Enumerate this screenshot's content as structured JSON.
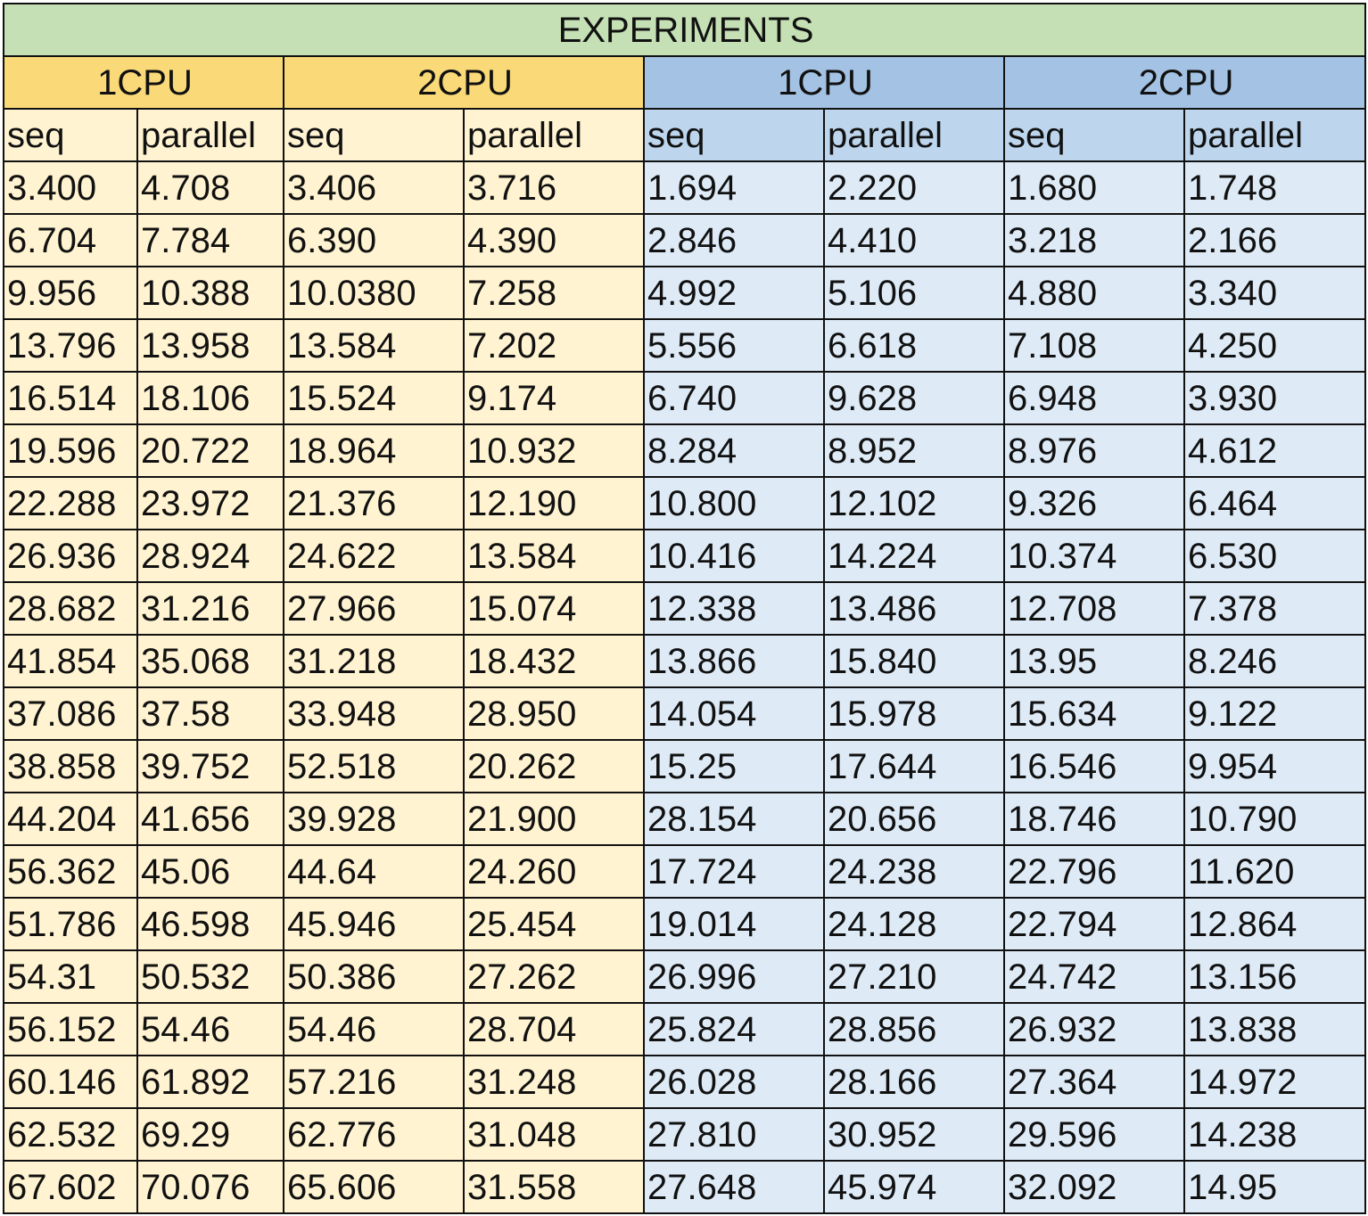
{
  "sheet": {
    "title": "EXPERIMENTS",
    "colors": {
      "title_bg": "#c5e0b4",
      "orange_header_bg": "#f9d978",
      "orange_body_bg": "#fff3d1",
      "blue_header_bg": "#a4c2e3",
      "blue_subheader_bg": "#bdd6ee",
      "blue_body_bg": "#deebf7"
    },
    "groups": [
      {
        "label": "1CPU",
        "theme": "orange"
      },
      {
        "label": "2CPU",
        "theme": "orange"
      },
      {
        "label": "1CPU",
        "theme": "blue"
      },
      {
        "label": "2CPU",
        "theme": "blue"
      }
    ],
    "columns": [
      "seq",
      "parallel",
      "seq",
      "parallel",
      "seq",
      "parallel",
      "seq",
      "parallel"
    ],
    "rows": [
      [
        "3.400",
        "4.708",
        "3.406",
        "3.716",
        "1.694",
        "2.220",
        "1.680",
        "1.748"
      ],
      [
        "6.704",
        "7.784",
        "6.390",
        "4.390",
        "2.846",
        "4.410",
        "3.218",
        "2.166"
      ],
      [
        "9.956",
        "10.388",
        "10.0380",
        "7.258",
        "4.992",
        "5.106",
        "4.880",
        "3.340"
      ],
      [
        "13.796",
        "13.958",
        "13.584",
        "7.202",
        "5.556",
        "6.618",
        "7.108",
        "4.250"
      ],
      [
        "16.514",
        "18.106",
        "15.524",
        "9.174",
        "6.740",
        "9.628",
        "6.948",
        "3.930"
      ],
      [
        "19.596",
        "20.722",
        "18.964",
        "10.932",
        "8.284",
        "8.952",
        "8.976",
        "4.612"
      ],
      [
        "22.288",
        "23.972",
        "21.376",
        "12.190",
        "10.800",
        "12.102",
        "9.326",
        "6.464"
      ],
      [
        "26.936",
        "28.924",
        "24.622",
        "13.584",
        "10.416",
        "14.224",
        "10.374",
        "6.530"
      ],
      [
        "28.682",
        "31.216",
        "27.966",
        "15.074",
        "12.338",
        "13.486",
        "12.708",
        "7.378"
      ],
      [
        "41.854",
        "35.068",
        "31.218",
        "18.432",
        "13.866",
        "15.840",
        "13.95",
        "8.246"
      ],
      [
        "37.086",
        "37.58",
        "33.948",
        "28.950",
        "14.054",
        "15.978",
        "15.634",
        "9.122"
      ],
      [
        "38.858",
        "39.752",
        "52.518",
        "20.262",
        "15.25",
        "17.644",
        "16.546",
        "9.954"
      ],
      [
        "44.204",
        "41.656",
        "39.928",
        "21.900",
        "28.154",
        "20.656",
        "18.746",
        "10.790"
      ],
      [
        "56.362",
        "45.06",
        "44.64",
        "24.260",
        "17.724",
        "24.238",
        "22.796",
        "11.620"
      ],
      [
        "51.786",
        "46.598",
        "45.946",
        "25.454",
        "19.014",
        "24.128",
        "22.794",
        "12.864"
      ],
      [
        "54.31",
        "50.532",
        "50.386",
        "27.262",
        "26.996",
        "27.210",
        "24.742",
        "13.156"
      ],
      [
        "56.152",
        "54.46",
        "54.46",
        "28.704",
        "25.824",
        "28.856",
        "26.932",
        "13.838"
      ],
      [
        "60.146",
        "61.892",
        "57.216",
        "31.248",
        "26.028",
        "28.166",
        "27.364",
        "14.972"
      ],
      [
        "62.532",
        "69.29",
        "62.776",
        "31.048",
        "27.810",
        "30.952",
        "29.596",
        "14.238"
      ],
      [
        "67.602",
        "70.076",
        "65.606",
        "31.558",
        "27.648",
        "45.974",
        "32.092",
        "14.95"
      ]
    ]
  }
}
